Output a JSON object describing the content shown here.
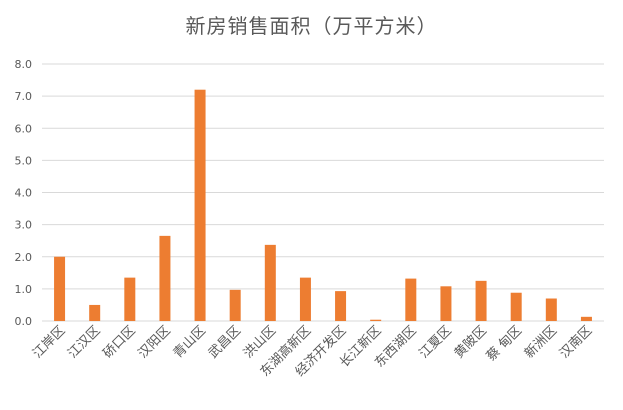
{
  "chart_data": {
    "type": "bar",
    "title": "新房销售面积（万平方米）",
    "xlabel": "",
    "ylabel": "",
    "ylim": [
      0,
      8
    ],
    "yticks": [
      "0.0",
      "1.0",
      "2.0",
      "3.0",
      "4.0",
      "5.0",
      "6.0",
      "7.0",
      "8.0"
    ],
    "grid": true,
    "legend": "none",
    "categories": [
      "江岸区",
      "江汉区",
      "硚口区",
      "汉阳区",
      "青山区",
      "武昌区",
      "洪山区",
      "东湖高新区",
      "经济开发区",
      "长江新区",
      "东西湖区",
      "江夏区",
      "黄陂区",
      "蔡 甸区",
      "新洲区",
      "汉南区"
    ],
    "values": [
      2.0,
      0.5,
      1.35,
      2.65,
      7.2,
      0.97,
      2.37,
      1.35,
      0.93,
      0.04,
      1.32,
      1.08,
      1.25,
      0.88,
      0.7,
      0.13
    ],
    "colors": {
      "bar": "#ED7D31",
      "grid": "#D9D9D9",
      "text": "#595959"
    }
  }
}
